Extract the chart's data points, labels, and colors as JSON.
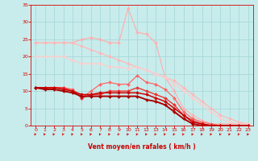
{
  "xlabel": "Vent moyen/en rafales ( km/h )",
  "xlim": [
    -0.5,
    23.5
  ],
  "ylim": [
    0,
    35
  ],
  "yticks": [
    0,
    5,
    10,
    15,
    20,
    25,
    30,
    35
  ],
  "xticks": [
    0,
    1,
    2,
    3,
    4,
    5,
    6,
    7,
    8,
    9,
    10,
    11,
    12,
    13,
    14,
    15,
    16,
    17,
    18,
    19,
    20,
    21,
    22,
    23
  ],
  "bg_color": "#c8ecec",
  "grid_color": "#a8d8d8",
  "lines": [
    {
      "x": [
        0,
        1,
        2,
        3,
        4,
        5,
        6,
        7,
        8,
        9,
        10,
        11,
        12,
        13,
        14,
        15,
        16,
        17,
        18,
        19,
        20,
        21,
        22,
        23
      ],
      "y": [
        24,
        24,
        24,
        24,
        24,
        25,
        25.5,
        25,
        24,
        24,
        34,
        27,
        26.5,
        24,
        14,
        10,
        5,
        3,
        1.5,
        0.5,
        0.5,
        0.5,
        0.5,
        0.5
      ],
      "color": "#ffb0b0",
      "lw": 0.9,
      "marker": "D",
      "ms": 2.0
    },
    {
      "x": [
        0,
        1,
        2,
        3,
        4,
        5,
        6,
        7,
        8,
        9,
        10,
        11,
        12,
        13,
        14,
        15,
        16,
        17,
        18,
        19,
        20,
        21,
        22,
        23
      ],
      "y": [
        24,
        24,
        24,
        24,
        24,
        23,
        22,
        21,
        20,
        19,
        18,
        17,
        16,
        15,
        14,
        13,
        11,
        9,
        7,
        5,
        3,
        2,
        1,
        0.5
      ],
      "color": "#ffb8b8",
      "lw": 0.9,
      "marker": "D",
      "ms": 2.0
    },
    {
      "x": [
        0,
        1,
        2,
        3,
        4,
        5,
        6,
        7,
        8,
        9,
        10,
        11,
        12,
        13,
        14,
        15,
        16,
        17,
        18,
        19,
        20,
        21,
        22,
        23
      ],
      "y": [
        20,
        20,
        20,
        20,
        19,
        18,
        18,
        18,
        17,
        17,
        16.5,
        17,
        16,
        15,
        14,
        12,
        10,
        8,
        6,
        4,
        2,
        1,
        0.5,
        0.5
      ],
      "color": "#ffcccc",
      "lw": 0.9,
      "marker": "D",
      "ms": 2.0
    },
    {
      "x": [
        0,
        1,
        2,
        3,
        4,
        5,
        6,
        7,
        8,
        9,
        10,
        11,
        12,
        13,
        14,
        15,
        16,
        17,
        18,
        19,
        20,
        21,
        22,
        23
      ],
      "y": [
        11,
        11,
        11,
        11,
        10.5,
        8,
        10,
        12,
        12.5,
        12,
        12,
        14.5,
        12.5,
        12,
        10.5,
        8,
        4,
        2,
        1,
        0.5,
        0,
        0,
        0,
        0
      ],
      "color": "#ff6666",
      "lw": 0.9,
      "marker": "D",
      "ms": 2.0
    },
    {
      "x": [
        0,
        1,
        2,
        3,
        4,
        5,
        6,
        7,
        8,
        9,
        10,
        11,
        12,
        13,
        14,
        15,
        16,
        17,
        18,
        19,
        20,
        21,
        22,
        23
      ],
      "y": [
        11,
        11,
        11,
        11,
        10,
        8,
        9,
        9,
        10,
        10,
        10,
        11,
        10,
        9,
        8,
        6,
        3,
        1.5,
        0.5,
        0,
        0,
        0,
        0,
        0
      ],
      "color": "#ee3333",
      "lw": 1.0,
      "marker": "D",
      "ms": 2.0
    },
    {
      "x": [
        0,
        1,
        2,
        3,
        4,
        5,
        6,
        7,
        8,
        9,
        10,
        11,
        12,
        13,
        14,
        15,
        16,
        17,
        18,
        19,
        20,
        21,
        22,
        23
      ],
      "y": [
        11,
        11,
        11,
        10.5,
        10,
        9,
        9,
        9.5,
        9.5,
        9.5,
        9.5,
        9.5,
        9,
        8,
        7,
        5,
        3,
        1,
        0.5,
        0,
        0,
        0,
        0,
        0
      ],
      "color": "#cc0000",
      "lw": 1.1,
      "marker": "D",
      "ms": 2.0
    },
    {
      "x": [
        0,
        1,
        2,
        3,
        4,
        5,
        6,
        7,
        8,
        9,
        10,
        11,
        12,
        13,
        14,
        15,
        16,
        17,
        18,
        19,
        20,
        21,
        22,
        23
      ],
      "y": [
        11,
        10.5,
        10.5,
        10,
        9.5,
        8.5,
        8.5,
        8.5,
        8.5,
        8.5,
        8.5,
        8.5,
        7.5,
        7,
        6,
        4,
        2,
        0.5,
        0,
        0,
        0,
        0,
        0,
        0
      ],
      "color": "#aa0000",
      "lw": 1.4,
      "marker": "D",
      "ms": 2.0
    }
  ],
  "tick_color": "#dd0000",
  "axis_label_color": "#cc0000"
}
